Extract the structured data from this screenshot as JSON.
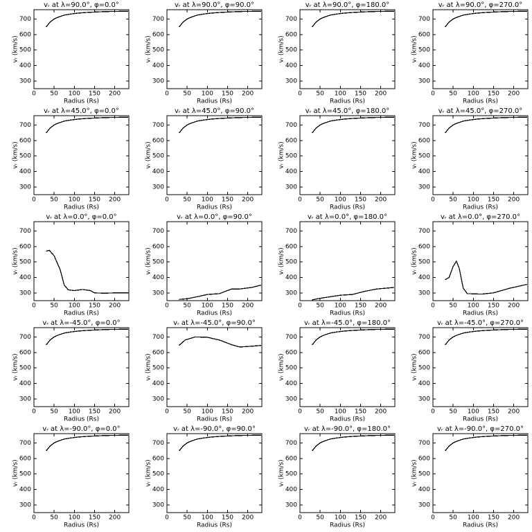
{
  "chart_data": [
    {
      "type": "line",
      "title": "vᵣ at λ=90.0°, φ=0.0°",
      "xlabel": "Radius (Rs)",
      "ylabel": "vᵣ (km/s)",
      "x": [
        30,
        40,
        50,
        60,
        75,
        90,
        110,
        130,
        150,
        175,
        200,
        233
      ],
      "values": [
        648,
        680,
        700,
        712,
        725,
        732,
        738,
        742,
        745,
        748,
        749,
        750
      ],
      "xlim": [
        0,
        235
      ],
      "ylim": [
        250,
        760
      ],
      "xticks": [
        0,
        50,
        100,
        150,
        200
      ],
      "yticks": [
        300,
        400,
        500,
        600,
        700
      ],
      "color": "#000000"
    },
    {
      "type": "line",
      "title": "vᵣ at λ=90.0°, φ=90.0°",
      "xlabel": "Radius (Rs)",
      "ylabel": "vᵣ (km/s)",
      "x": [
        30,
        40,
        50,
        60,
        75,
        90,
        110,
        130,
        150,
        175,
        200,
        233
      ],
      "values": [
        648,
        680,
        700,
        712,
        725,
        732,
        738,
        742,
        745,
        748,
        749,
        750
      ],
      "xlim": [
        0,
        235
      ],
      "ylim": [
        250,
        760
      ],
      "xticks": [
        0,
        50,
        100,
        150,
        200
      ],
      "yticks": [
        300,
        400,
        500,
        600,
        700
      ],
      "color": "#000000"
    },
    {
      "type": "line",
      "title": "vᵣ at λ=90.0°, φ=180.0°",
      "xlabel": "Radius (Rs)",
      "ylabel": "vᵣ (km/s)",
      "x": [
        30,
        40,
        50,
        60,
        75,
        90,
        110,
        130,
        150,
        175,
        200,
        233
      ],
      "values": [
        648,
        680,
        700,
        712,
        725,
        732,
        738,
        742,
        745,
        748,
        749,
        750
      ],
      "xlim": [
        0,
        235
      ],
      "ylim": [
        250,
        760
      ],
      "xticks": [
        0,
        50,
        100,
        150,
        200
      ],
      "yticks": [
        300,
        400,
        500,
        600,
        700
      ],
      "color": "#000000"
    },
    {
      "type": "line",
      "title": "vᵣ at λ=90.0°, φ=270.0°",
      "xlabel": "Radius (Rs)",
      "ylabel": "vᵣ (km/s)",
      "x": [
        30,
        40,
        50,
        60,
        75,
        90,
        110,
        130,
        150,
        175,
        200,
        233
      ],
      "values": [
        648,
        680,
        700,
        712,
        725,
        732,
        738,
        742,
        745,
        748,
        749,
        750
      ],
      "xlim": [
        0,
        235
      ],
      "ylim": [
        250,
        760
      ],
      "xticks": [
        0,
        50,
        100,
        150,
        200
      ],
      "yticks": [
        300,
        400,
        500,
        600,
        700
      ],
      "color": "#000000"
    },
    {
      "type": "line",
      "title": "vᵣ at λ=45.0°, φ=0.0°",
      "xlabel": "Radius (Rs)",
      "ylabel": "vᵣ (km/s)",
      "x": [
        30,
        40,
        50,
        60,
        75,
        90,
        110,
        130,
        150,
        175,
        200,
        233
      ],
      "values": [
        648,
        680,
        700,
        712,
        725,
        732,
        738,
        742,
        745,
        748,
        749,
        750
      ],
      "xlim": [
        0,
        235
      ],
      "ylim": [
        250,
        760
      ],
      "xticks": [
        0,
        50,
        100,
        150,
        200
      ],
      "yticks": [
        300,
        400,
        500,
        600,
        700
      ],
      "color": "#000000"
    },
    {
      "type": "line",
      "title": "vᵣ at λ=45.0°, φ=90.0°",
      "xlabel": "Radius (Rs)",
      "ylabel": "vᵣ (km/s)",
      "x": [
        30,
        40,
        50,
        60,
        75,
        90,
        110,
        130,
        150,
        175,
        200,
        233
      ],
      "values": [
        648,
        680,
        700,
        712,
        725,
        732,
        738,
        742,
        745,
        748,
        749,
        750
      ],
      "xlim": [
        0,
        235
      ],
      "ylim": [
        250,
        760
      ],
      "xticks": [
        0,
        50,
        100,
        150,
        200
      ],
      "yticks": [
        300,
        400,
        500,
        600,
        700
      ],
      "color": "#000000"
    },
    {
      "type": "line",
      "title": "vᵣ at λ=45.0°, φ=180.0°",
      "xlabel": "Radius (Rs)",
      "ylabel": "vᵣ (km/s)",
      "x": [
        30,
        40,
        50,
        60,
        75,
        90,
        110,
        130,
        150,
        175,
        200,
        233
      ],
      "values": [
        648,
        680,
        700,
        712,
        725,
        732,
        738,
        742,
        745,
        748,
        749,
        750
      ],
      "xlim": [
        0,
        235
      ],
      "ylim": [
        250,
        760
      ],
      "xticks": [
        0,
        50,
        100,
        150,
        200
      ],
      "yticks": [
        300,
        400,
        500,
        600,
        700
      ],
      "color": "#000000"
    },
    {
      "type": "line",
      "title": "vᵣ at λ=45.0°, φ=270.0°",
      "xlabel": "Radius (Rs)",
      "ylabel": "vᵣ (km/s)",
      "x": [
        30,
        40,
        50,
        60,
        75,
        90,
        110,
        130,
        150,
        175,
        200,
        233
      ],
      "values": [
        648,
        680,
        700,
        712,
        725,
        732,
        738,
        742,
        745,
        748,
        749,
        750
      ],
      "xlim": [
        0,
        235
      ],
      "ylim": [
        250,
        760
      ],
      "xticks": [
        0,
        50,
        100,
        150,
        200
      ],
      "yticks": [
        300,
        400,
        500,
        600,
        700
      ],
      "color": "#000000"
    },
    {
      "type": "line",
      "title": "vᵣ at λ=0.0°, φ=0.0°",
      "xlabel": "Radius (Rs)",
      "ylabel": "vᵣ (km/s)",
      "x": [
        30,
        38,
        50,
        65,
        75,
        85,
        100,
        120,
        140,
        150,
        175,
        200,
        233
      ],
      "values": [
        570,
        575,
        540,
        450,
        350,
        320,
        315,
        322,
        315,
        300,
        298,
        300,
        300
      ],
      "xlim": [
        0,
        235
      ],
      "ylim": [
        250,
        760
      ],
      "xticks": [
        0,
        50,
        100,
        150,
        200
      ],
      "yticks": [
        300,
        400,
        500,
        600,
        700
      ],
      "color": "#000000"
    },
    {
      "type": "line",
      "title": "vᵣ at λ=0.0°, φ=90.0°",
      "xlabel": "Radius (Rs)",
      "ylabel": "vᵣ (km/s)",
      "x": [
        30,
        50,
        75,
        100,
        130,
        160,
        180,
        210,
        233
      ],
      "values": [
        258,
        262,
        275,
        290,
        295,
        325,
        325,
        335,
        350
      ],
      "xlim": [
        0,
        235
      ],
      "ylim": [
        250,
        760
      ],
      "xticks": [
        0,
        50,
        100,
        150,
        200
      ],
      "yticks": [
        300,
        400,
        500,
        600,
        700
      ],
      "color": "#000000"
    },
    {
      "type": "line",
      "title": "vᵣ at λ=0.0°, φ=180.0°",
      "xlabel": "Radius (Rs)",
      "ylabel": "vᵣ (km/s)",
      "x": [
        30,
        50,
        75,
        100,
        130,
        160,
        190,
        233
      ],
      "values": [
        255,
        265,
        275,
        285,
        290,
        310,
        325,
        335
      ],
      "xlim": [
        0,
        235
      ],
      "ylim": [
        250,
        760
      ],
      "xticks": [
        0,
        50,
        100,
        150,
        200
      ],
      "yticks": [
        300,
        400,
        500,
        600,
        700
      ],
      "color": "#000000"
    },
    {
      "type": "line",
      "title": "vᵣ at λ=0.0°, φ=270.0°",
      "xlabel": "Radius (Rs)",
      "ylabel": "vᵣ (km/s)",
      "x": [
        30,
        40,
        50,
        58,
        65,
        75,
        85,
        120,
        150,
        190,
        233
      ],
      "values": [
        385,
        400,
        470,
        505,
        460,
        330,
        295,
        292,
        300,
        330,
        355
      ],
      "xlim": [
        0,
        235
      ],
      "ylim": [
        250,
        760
      ],
      "xticks": [
        0,
        50,
        100,
        150,
        200
      ],
      "yticks": [
        300,
        400,
        500,
        600,
        700
      ],
      "color": "#000000"
    },
    {
      "type": "line",
      "title": "vᵣ at λ=-45.0°, φ=0.0°",
      "xlabel": "Radius (Rs)",
      "ylabel": "vᵣ (km/s)",
      "x": [
        30,
        40,
        50,
        60,
        75,
        90,
        110,
        130,
        150,
        175,
        200,
        233
      ],
      "values": [
        648,
        680,
        700,
        712,
        725,
        732,
        738,
        742,
        745,
        748,
        749,
        750
      ],
      "xlim": [
        0,
        235
      ],
      "ylim": [
        250,
        760
      ],
      "xticks": [
        0,
        50,
        100,
        150,
        200
      ],
      "yticks": [
        300,
        400,
        500,
        600,
        700
      ],
      "color": "#000000"
    },
    {
      "type": "line",
      "title": "vᵣ at λ=-45.0°, φ=90.0°",
      "xlabel": "Radius (Rs)",
      "ylabel": "vᵣ (km/s)",
      "x": [
        30,
        45,
        70,
        100,
        130,
        160,
        180,
        210,
        233
      ],
      "values": [
        645,
        680,
        700,
        698,
        680,
        650,
        635,
        640,
        645
      ],
      "xlim": [
        0,
        235
      ],
      "ylim": [
        250,
        760
      ],
      "xticks": [
        0,
        50,
        100,
        150,
        200
      ],
      "yticks": [
        300,
        400,
        500,
        600,
        700
      ],
      "color": "#000000"
    },
    {
      "type": "line",
      "title": "vᵣ at λ=-45.0°, φ=180.0°",
      "xlabel": "Radius (Rs)",
      "ylabel": "vᵣ (km/s)",
      "x": [
        30,
        40,
        50,
        60,
        75,
        90,
        110,
        130,
        150,
        175,
        200,
        233
      ],
      "values": [
        648,
        680,
        700,
        712,
        725,
        732,
        738,
        742,
        745,
        748,
        749,
        750
      ],
      "xlim": [
        0,
        235
      ],
      "ylim": [
        250,
        760
      ],
      "xticks": [
        0,
        50,
        100,
        150,
        200
      ],
      "yticks": [
        300,
        400,
        500,
        600,
        700
      ],
      "color": "#000000"
    },
    {
      "type": "line",
      "title": "vᵣ at λ=-45.0°, φ=270.0°",
      "xlabel": "Radius (Rs)",
      "ylabel": "vᵣ (km/s)",
      "x": [
        30,
        40,
        50,
        60,
        75,
        90,
        110,
        130,
        150,
        175,
        200,
        233
      ],
      "values": [
        648,
        680,
        700,
        712,
        725,
        732,
        738,
        742,
        745,
        748,
        749,
        750
      ],
      "xlim": [
        0,
        235
      ],
      "ylim": [
        250,
        760
      ],
      "xticks": [
        0,
        50,
        100,
        150,
        200
      ],
      "yticks": [
        300,
        400,
        500,
        600,
        700
      ],
      "color": "#000000"
    },
    {
      "type": "line",
      "title": "vᵣ at λ=-90.0°, φ=0.0°",
      "xlabel": "Radius (Rs)",
      "ylabel": "vᵣ (km/s)",
      "x": [
        30,
        40,
        50,
        60,
        75,
        90,
        110,
        130,
        150,
        175,
        200,
        233
      ],
      "values": [
        648,
        680,
        700,
        712,
        725,
        732,
        738,
        742,
        745,
        748,
        749,
        750
      ],
      "xlim": [
        0,
        235
      ],
      "ylim": [
        250,
        760
      ],
      "xticks": [
        0,
        50,
        100,
        150,
        200
      ],
      "yticks": [
        300,
        400,
        500,
        600,
        700
      ],
      "color": "#000000"
    },
    {
      "type": "line",
      "title": "vᵣ at λ=-90.0°, φ=90.0°",
      "xlabel": "Radius (Rs)",
      "ylabel": "vᵣ (km/s)",
      "x": [
        30,
        40,
        50,
        60,
        75,
        90,
        110,
        130,
        150,
        175,
        200,
        233
      ],
      "values": [
        648,
        680,
        700,
        712,
        725,
        732,
        738,
        742,
        745,
        748,
        749,
        750
      ],
      "xlim": [
        0,
        235
      ],
      "ylim": [
        250,
        760
      ],
      "xticks": [
        0,
        50,
        100,
        150,
        200
      ],
      "yticks": [
        300,
        400,
        500,
        600,
        700
      ],
      "color": "#000000"
    },
    {
      "type": "line",
      "title": "vᵣ at λ=-90.0°, φ=180.0°",
      "xlabel": "Radius (Rs)",
      "ylabel": "vᵣ (km/s)",
      "x": [
        30,
        40,
        50,
        60,
        75,
        90,
        110,
        130,
        150,
        175,
        200,
        233
      ],
      "values": [
        648,
        680,
        700,
        712,
        725,
        732,
        738,
        742,
        745,
        748,
        749,
        750
      ],
      "xlim": [
        0,
        235
      ],
      "ylim": [
        250,
        760
      ],
      "xticks": [
        0,
        50,
        100,
        150,
        200
      ],
      "yticks": [
        300,
        400,
        500,
        600,
        700
      ],
      "color": "#000000"
    },
    {
      "type": "line",
      "title": "vᵣ at λ=-90.0°, φ=270.0°",
      "xlabel": "Radius (Rs)",
      "ylabel": "vᵣ (km/s)",
      "x": [
        30,
        40,
        50,
        60,
        75,
        90,
        110,
        130,
        150,
        175,
        200,
        233
      ],
      "values": [
        648,
        680,
        700,
        712,
        725,
        732,
        738,
        742,
        745,
        748,
        749,
        750
      ],
      "xlim": [
        0,
        235
      ],
      "ylim": [
        250,
        760
      ],
      "xticks": [
        0,
        50,
        100,
        150,
        200
      ],
      "yticks": [
        300,
        400,
        500,
        600,
        700
      ],
      "color": "#000000"
    }
  ]
}
